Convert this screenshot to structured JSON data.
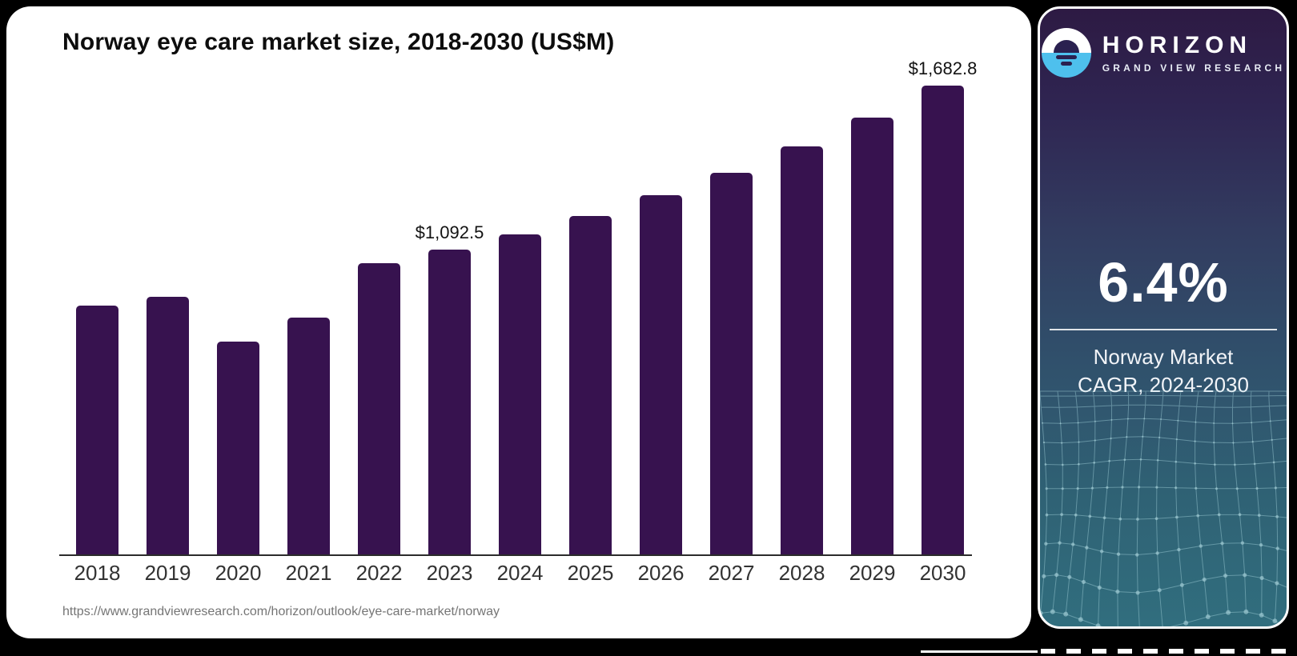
{
  "chart_card": {
    "title": "Norway eye care market size, 2018-2030 (US$M)",
    "source_url": "https://www.grandviewresearch.com/horizon/outlook/eye-care-market/norway"
  },
  "chart_data": {
    "type": "bar",
    "title": "Norway eye care market size, 2018-2030 (US$M)",
    "unit": "US$M",
    "categories": [
      "2018",
      "2019",
      "2020",
      "2021",
      "2022",
      "2023",
      "2024",
      "2025",
      "2026",
      "2027",
      "2028",
      "2029",
      "2030"
    ],
    "values": [
      894.0,
      925.8,
      763.4,
      849.5,
      1044.6,
      1092.5,
      1149.7,
      1214.8,
      1288.6,
      1370.5,
      1463.5,
      1566.9,
      1682.8
    ],
    "value_labels": {
      "2023": "$1,092.5",
      "2030": "$1,682.8"
    },
    "note": "Only 2023 and 2030 carry printed labels; other values estimated from bar heights",
    "bar_color": "#37124F",
    "ylim": [
      0,
      1750
    ],
    "grid": false,
    "legend": "none",
    "axis_line_color": "#2b2b2b"
  },
  "sidebar": {
    "logo": {
      "brand": "HORIZON",
      "subbrand": "GRAND VIEW RESEARCH",
      "icon": "horizon-sun-circle-icon"
    },
    "stat_value": "6.4%",
    "stat_label_line1": "Norway Market",
    "stat_label_line2": "CAGR, 2024-2030",
    "colors": {
      "gradient_top": "#2D1A43",
      "gradient_bottom": "#316E7E",
      "logo_blue": "#4EC0ED",
      "logo_mark_dark": "#2A2150",
      "mesh_line": "rgba(165,210,220,0.45)"
    }
  }
}
